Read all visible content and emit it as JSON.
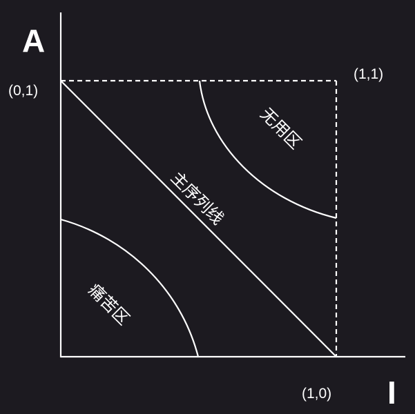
{
  "axes": {
    "y_label": "A",
    "x_label": "I"
  },
  "corners": {
    "top_left": "(0,1)",
    "top_right": "(1,1)",
    "bottom_right": "(1,0)"
  },
  "regions": {
    "useless_zone": "无用区",
    "main_sequence": "主序列线",
    "pain_zone": "痛苦区"
  },
  "colors": {
    "background": "#1c1a20",
    "foreground": "#ffffff"
  }
}
